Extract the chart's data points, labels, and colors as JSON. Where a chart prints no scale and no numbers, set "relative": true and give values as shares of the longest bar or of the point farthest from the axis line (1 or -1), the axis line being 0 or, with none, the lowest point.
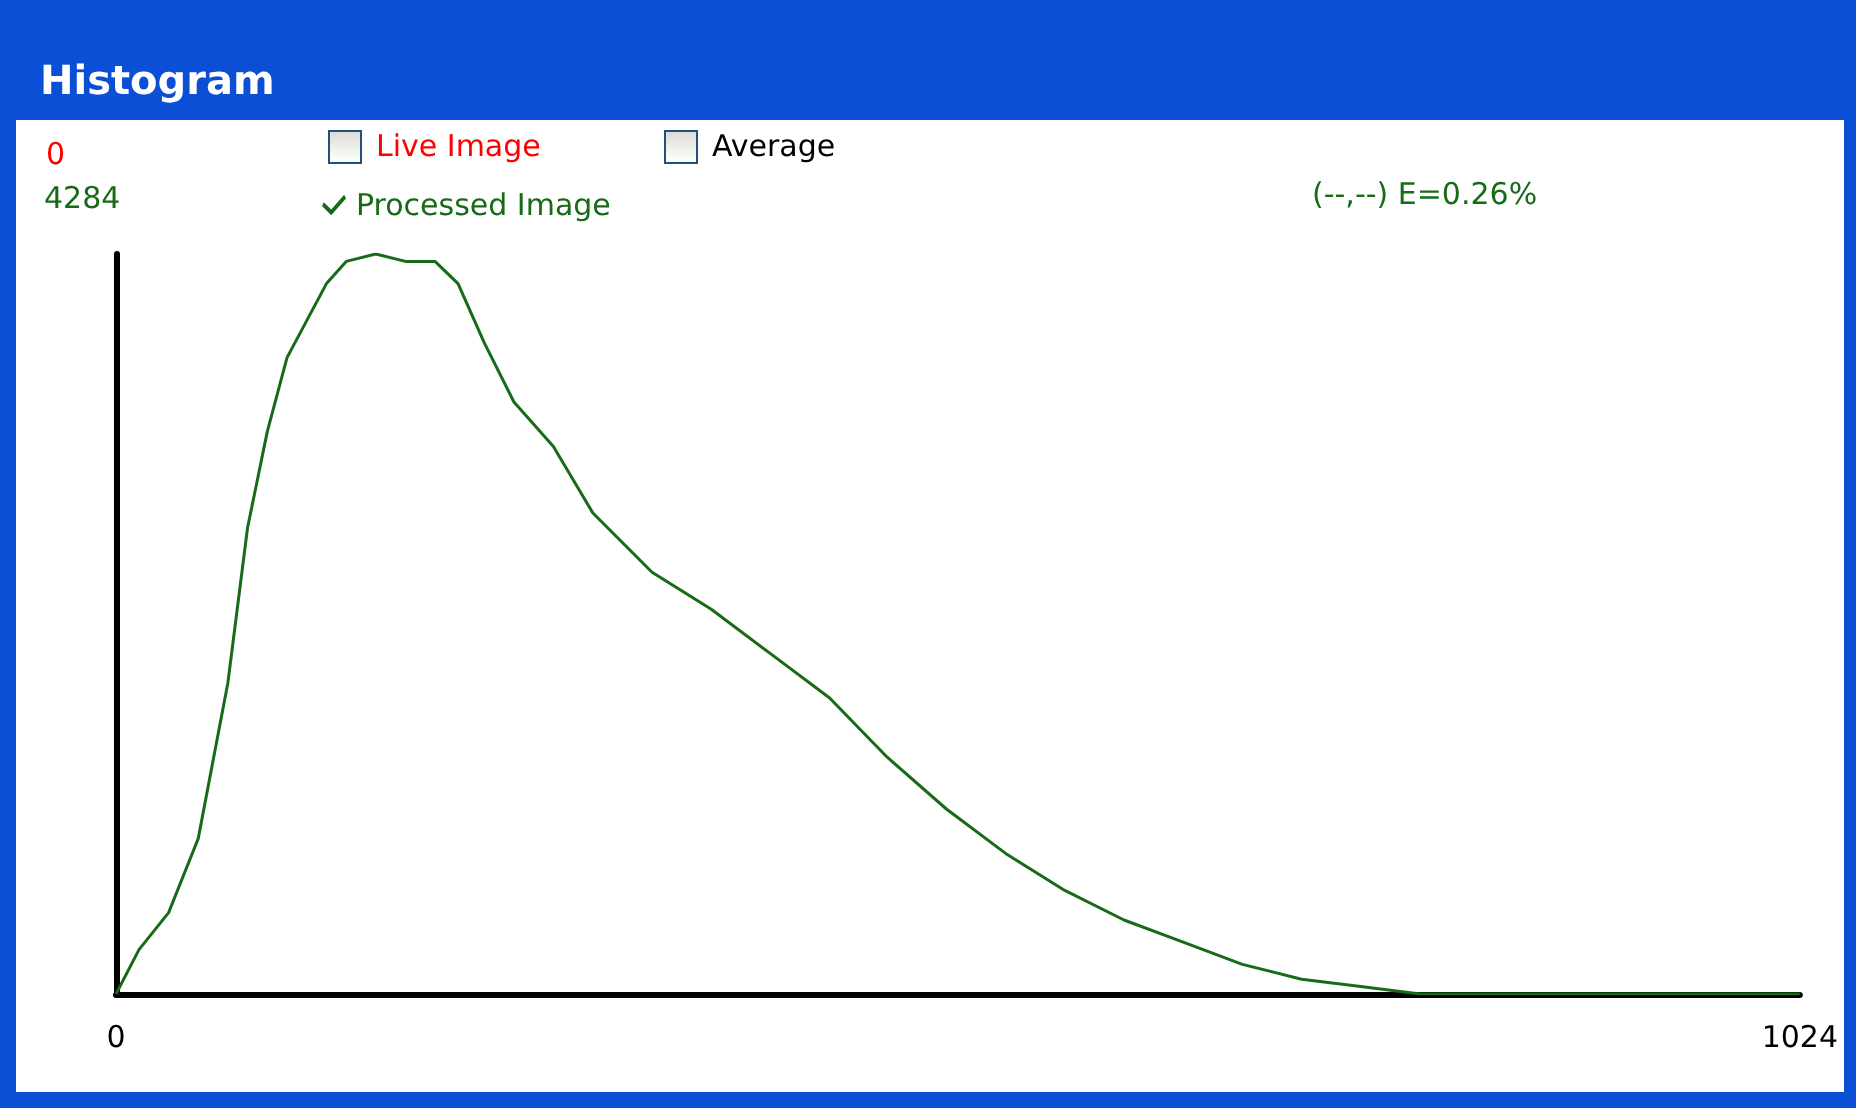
{
  "chart_data": {
    "type": "line",
    "title": "Histogram",
    "x": [
      0,
      14,
      32,
      50,
      68,
      80,
      92,
      104,
      116,
      128,
      140,
      158,
      176,
      194,
      208,
      224,
      242,
      266,
      290,
      326,
      362,
      398,
      434,
      469,
      505,
      541,
      577,
      613,
      649,
      685,
      721,
      757,
      793,
      841,
      1024
    ],
    "series": [
      {
        "name": "Processed Image",
        "color": "#176b17",
        "values": [
          0,
          0.06,
          0.11,
          0.21,
          0.42,
          0.63,
          0.76,
          0.86,
          0.91,
          0.96,
          0.99,
          1,
          0.99,
          0.99,
          0.96,
          0.88,
          0.8,
          0.74,
          0.65,
          0.57,
          0.52,
          0.46,
          0.4,
          0.32,
          0.25,
          0.19,
          0.14,
          0.1,
          0.07,
          0.04,
          0.02,
          0.01,
          0,
          0,
          0
        ]
      }
    ],
    "xlim": [
      0,
      1024
    ],
    "xticks": [
      0,
      1024
    ],
    "relative": true,
    "grid": false,
    "legend": "top left",
    "marker": "none",
    "line_style": "solid",
    "annotations": [
      "0",
      "4284",
      "Live Image",
      "Average",
      "(--,--) E=0.26%"
    ]
  }
}
